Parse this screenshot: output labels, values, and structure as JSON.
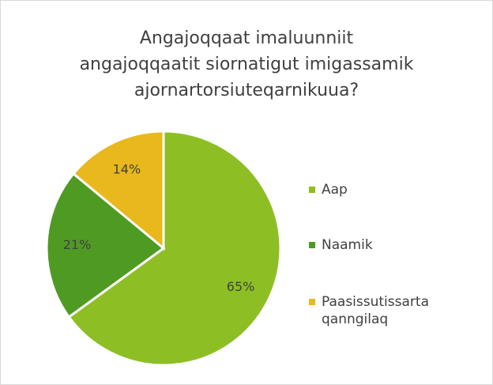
{
  "chart_data": {
    "type": "pie",
    "title": [
      "Angajoqqaat imaluunniit",
      "angajoqqaatit siornatigut imigassamik",
      "ajornartorsiuteqarnikuua?"
    ],
    "categories": [
      "Aap",
      "Naamik",
      "Paasissutissarta qanngilaq"
    ],
    "values": [
      65,
      21,
      14
    ],
    "value_labels": [
      "65%",
      "21%",
      "14%"
    ],
    "colors": [
      "#8dbf25",
      "#4f9a23",
      "#e8b81c"
    ],
    "legend": "right"
  }
}
